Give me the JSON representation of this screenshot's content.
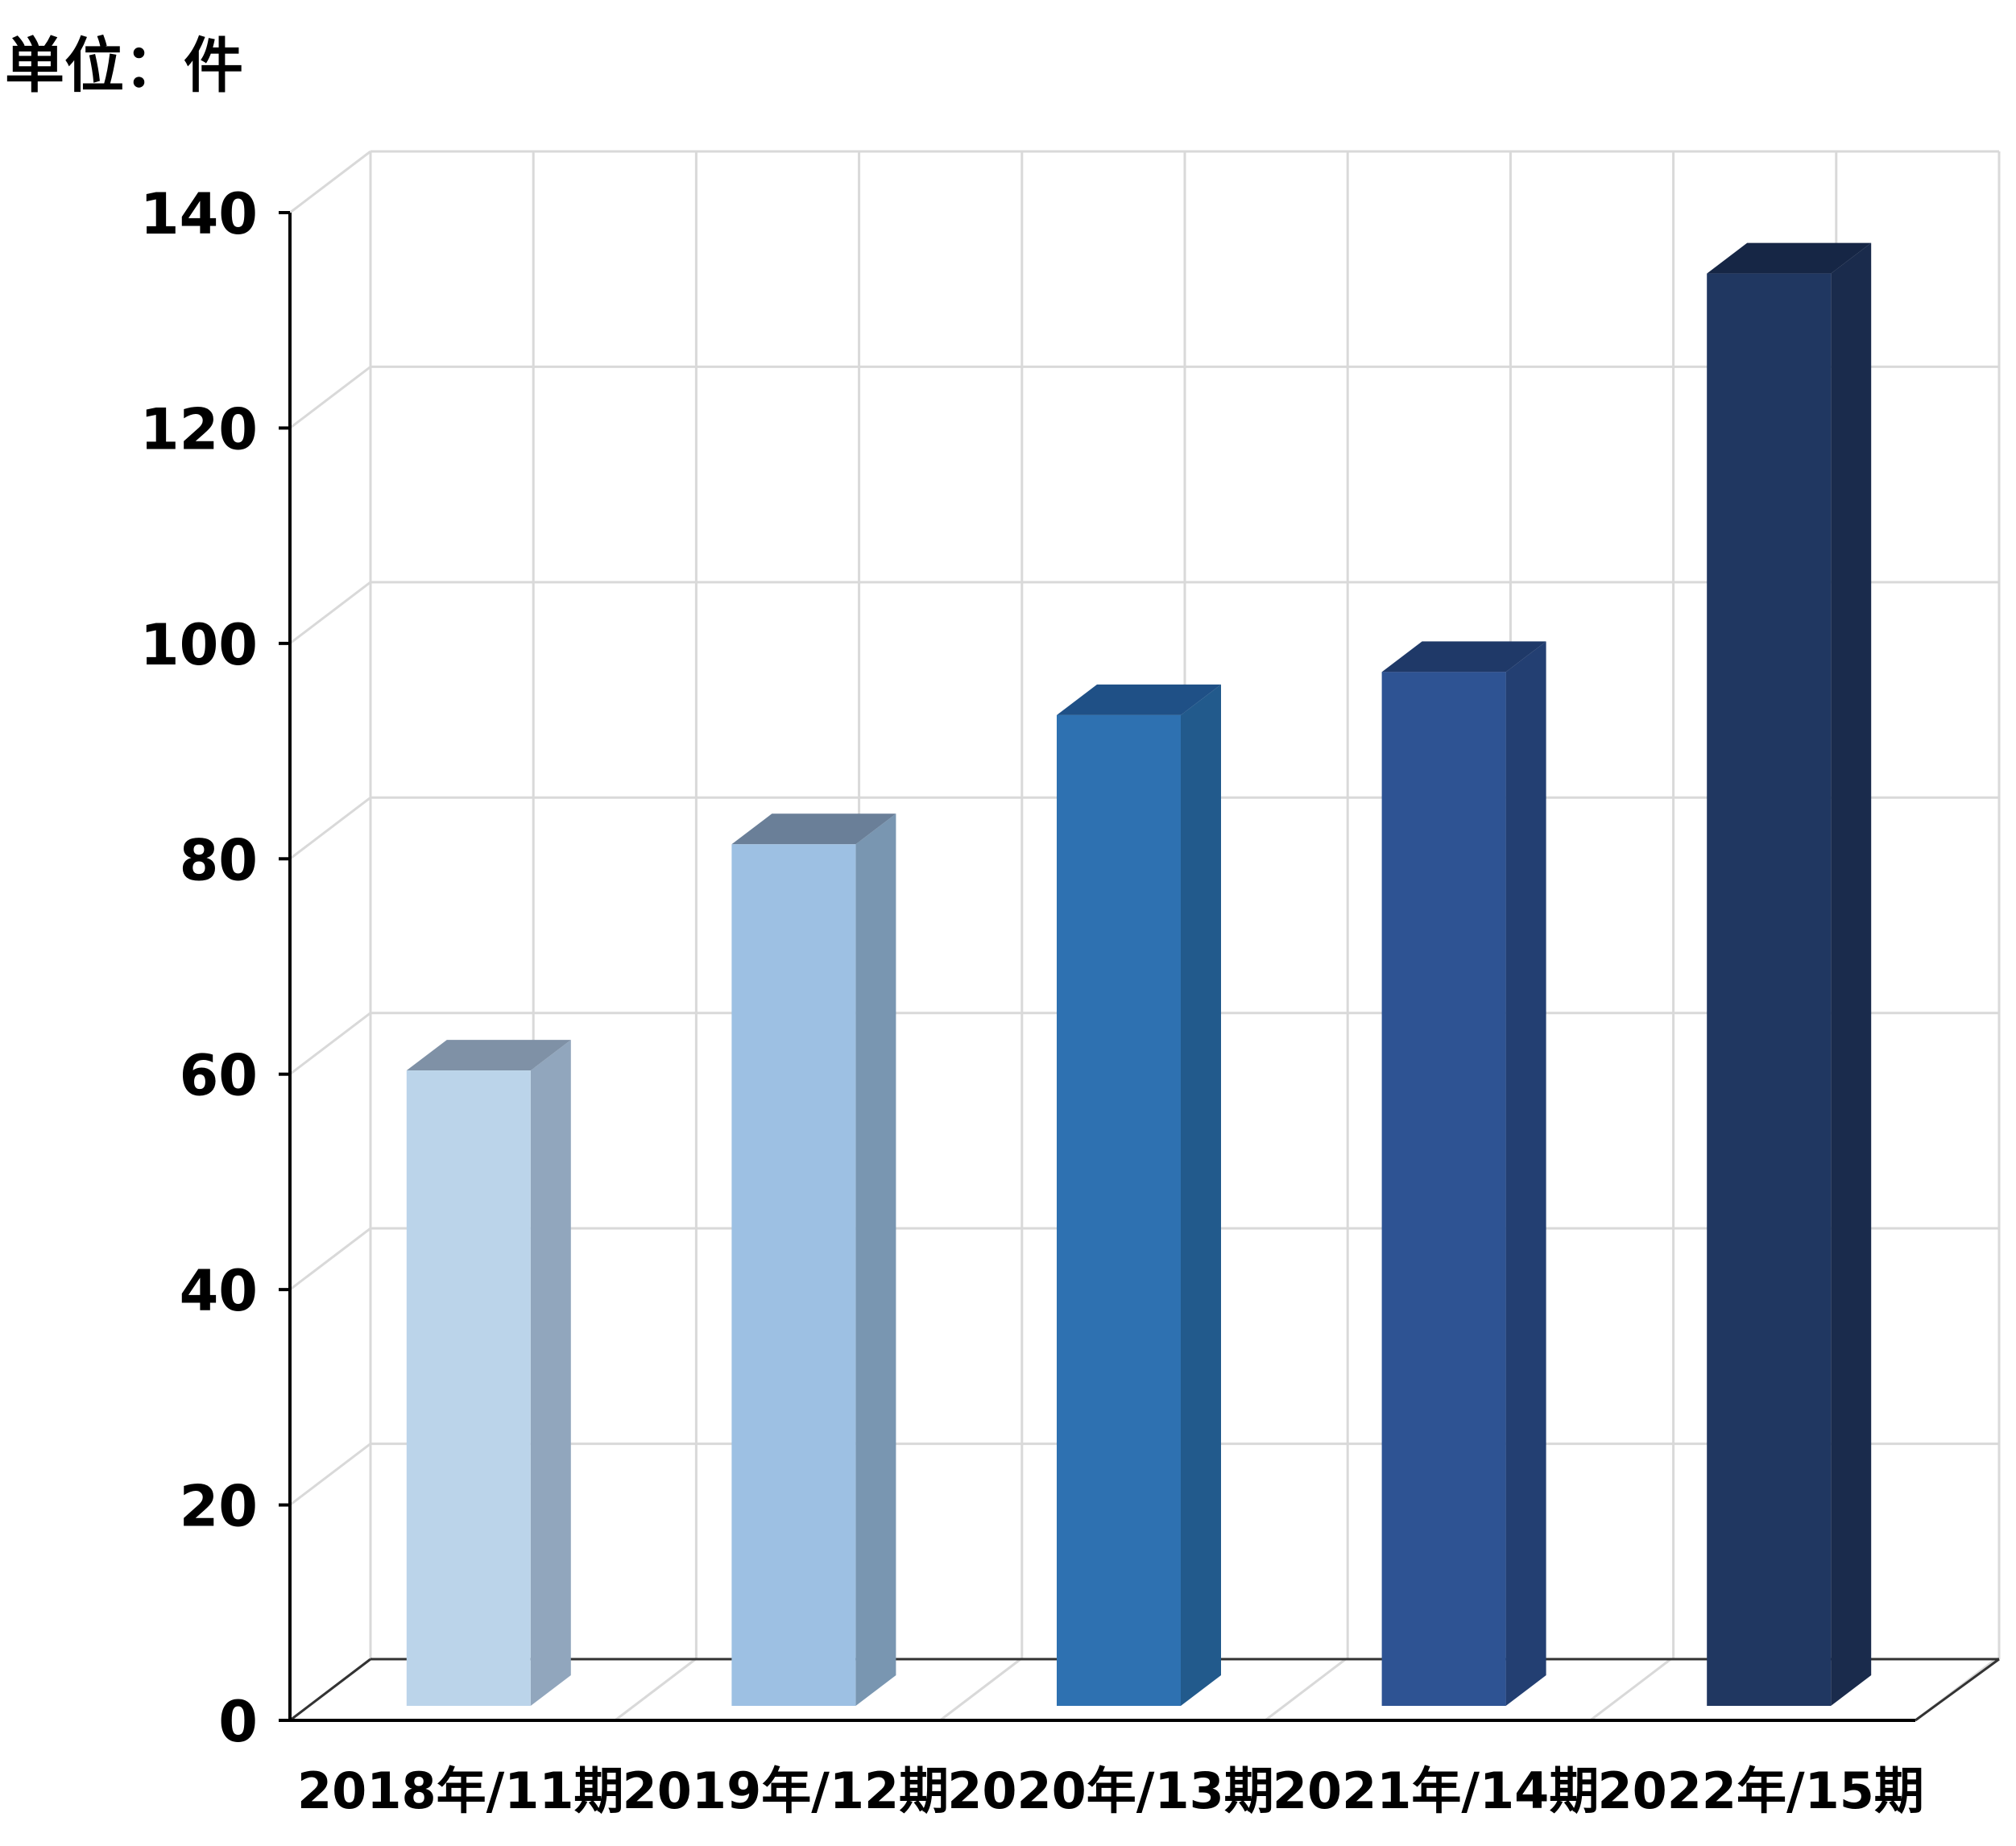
{
  "unit_label": "単位：件",
  "chart_data": {
    "type": "bar",
    "categories": [
      "2018年/11期",
      "2019年/12期",
      "2020年/13期",
      "2021年/14期",
      "2022年/15期"
    ],
    "values": [
      59,
      80,
      92,
      96,
      133
    ],
    "ylim": [
      0,
      140
    ],
    "yticks": [
      0,
      20,
      40,
      60,
      80,
      100,
      120,
      140
    ],
    "grid": true,
    "style": "3d-column",
    "bar_colors": [
      "#BBD4EA",
      "#9DC0E3",
      "#2E71B1",
      "#2E5393",
      "#203761"
    ],
    "side_colors": [
      "#91A6BD",
      "#7996B1",
      "#225A8C",
      "#233F72",
      "#1A2B4C"
    ],
    "top_colors": [
      "#7F91A6",
      "#6A7F98",
      "#1F5086",
      "#1F3968",
      "#162645"
    ]
  }
}
